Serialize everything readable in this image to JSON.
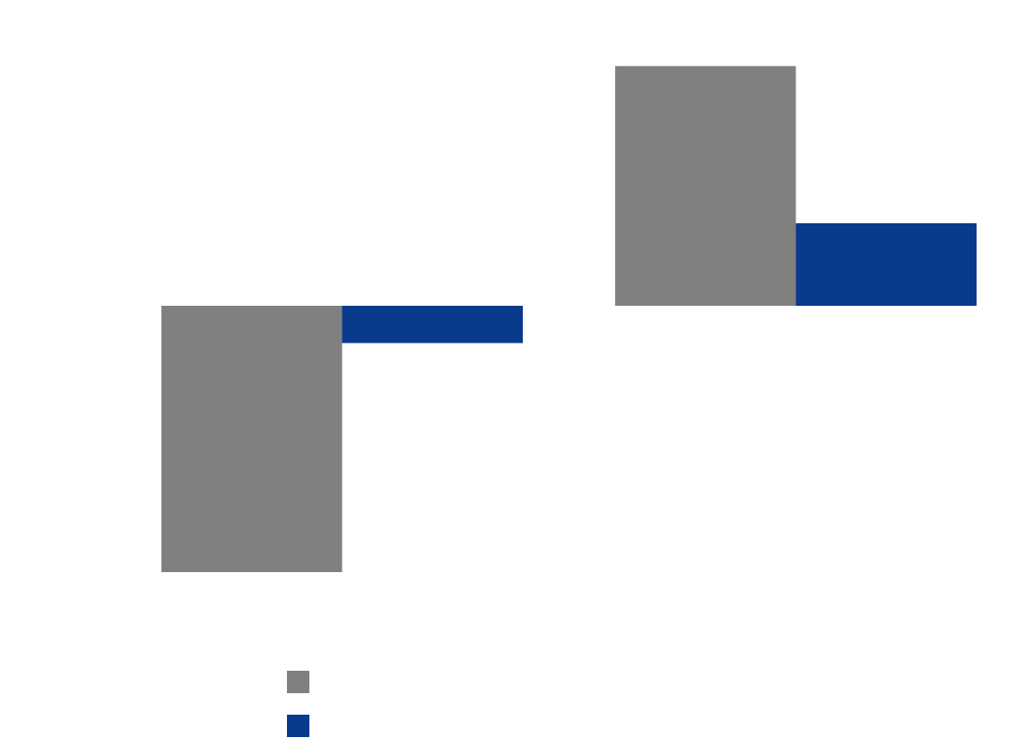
{
  "chart_data": {
    "type": "bar",
    "categories": [
      "",
      ""
    ],
    "series": [
      {
        "name": "",
        "color": "#808080",
        "values": [
          -100,
          90
        ]
      },
      {
        "name": "",
        "color": "#0A3A8C",
        "values": [
          -14,
          31
        ]
      }
    ],
    "ylim": [
      -130,
      160
    ],
    "grid": false,
    "legend": "bottom"
  }
}
